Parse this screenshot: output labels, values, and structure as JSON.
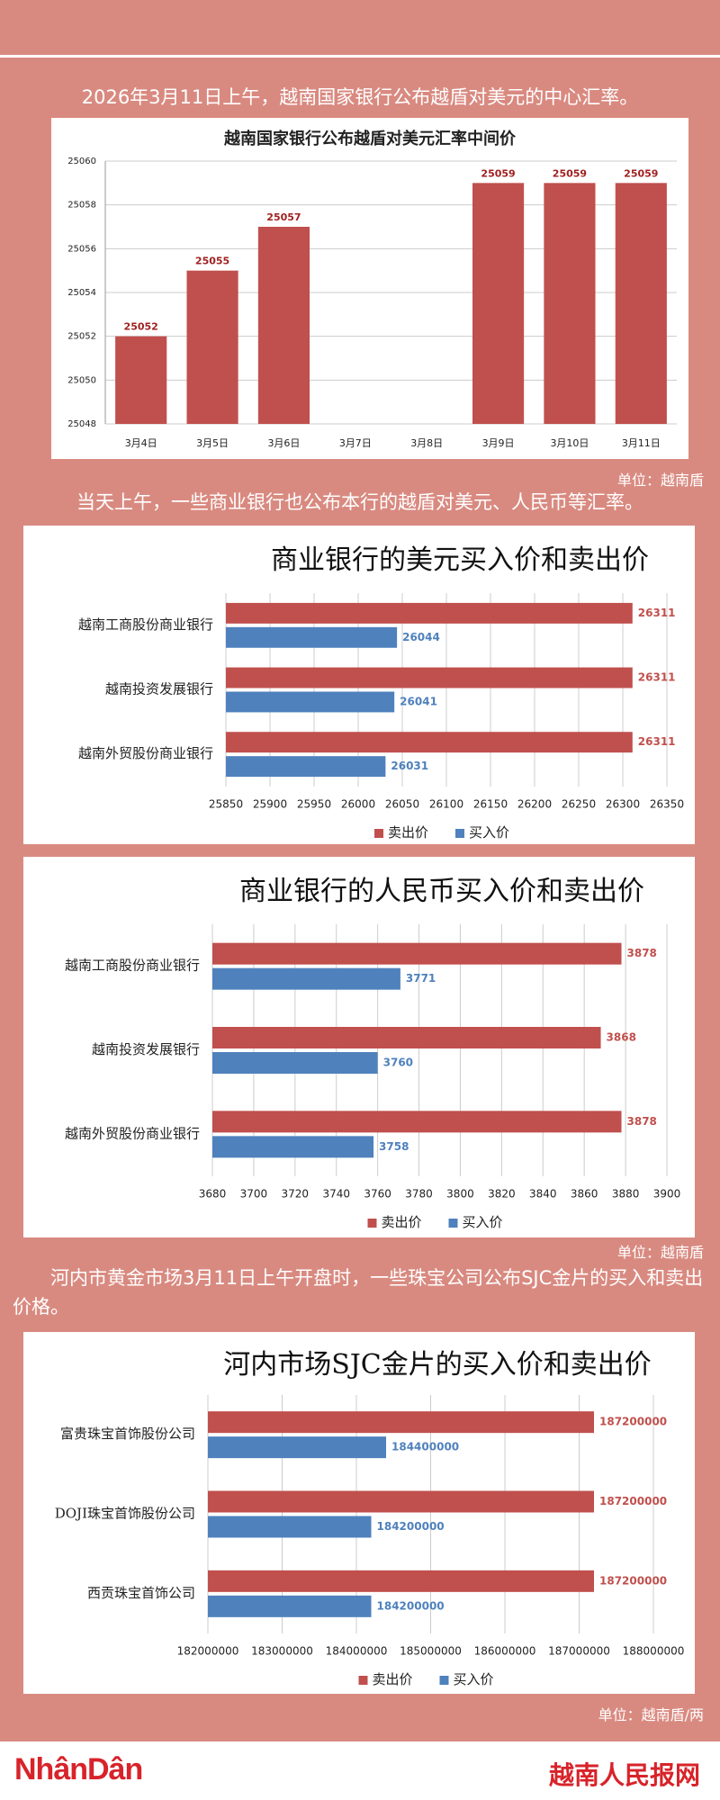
{
  "paragraphs": [
    "2026年3月11日上午，越南国家银行公布越盾对美元的中心汇率。",
    "当天上午，一些商业银行也公布本行的越盾对美元、人民币等汇率。",
    "河内市黄金市场3月11日上午开盘时，一些珠宝公司公布SJC金片的买入和卖出价格。"
  ],
  "units": [
    "单位：越南盾",
    "单位：越南盾",
    "单位：越南盾/两"
  ],
  "footer": {
    "logo": "NhânDân",
    "site": "越南人民报网"
  },
  "chart_data": [
    {
      "type": "bar",
      "title": "越南国家银行公布越盾对美元汇率中间价",
      "categories": [
        "3月4日",
        "3月5日",
        "3月6日",
        "3月7日",
        "3月8日",
        "3月9日",
        "3月10日",
        "3月11日"
      ],
      "values": [
        25052,
        25055,
        25057,
        null,
        null,
        25059,
        25059,
        25059
      ],
      "color": "#c0504d",
      "ylim": [
        25048,
        25060
      ],
      "yticks": [
        25048,
        25050,
        25052,
        25054,
        25056,
        25058,
        25060
      ],
      "grid": true
    },
    {
      "type": "bar",
      "horizontal": true,
      "title": "商业银行的美元买入价和卖出价",
      "categories": [
        "越南工商股份商业银行",
        "越南投资发展银行",
        "越南外贸股份商业银行"
      ],
      "series": [
        {
          "name": "卖出价",
          "color": "#c0504d",
          "values": [
            26311,
            26311,
            26311
          ]
        },
        {
          "name": "买入价",
          "color": "#4f81bd",
          "values": [
            26044,
            26041,
            26031
          ]
        }
      ],
      "xlim": [
        25850,
        26350
      ],
      "xticks": [
        25850,
        25900,
        25950,
        26000,
        26050,
        26100,
        26150,
        26200,
        26250,
        26300,
        26350
      ],
      "grid": true,
      "legend": "bottom"
    },
    {
      "type": "bar",
      "horizontal": true,
      "title": "商业银行的人民币买入价和卖出价",
      "categories": [
        "越南工商股份商业银行",
        "越南投资发展银行",
        "越南外贸股份商业银行"
      ],
      "series": [
        {
          "name": "卖出价",
          "color": "#c0504d",
          "values": [
            3878,
            3868,
            3878
          ]
        },
        {
          "name": "买入价",
          "color": "#4f81bd",
          "values": [
            3771,
            3760,
            3758
          ]
        }
      ],
      "xlim": [
        3680,
        3900
      ],
      "xticks": [
        3680,
        3700,
        3720,
        3740,
        3760,
        3780,
        3800,
        3820,
        3840,
        3860,
        3880,
        3900
      ],
      "grid": true,
      "legend": "bottom"
    },
    {
      "type": "bar",
      "horizontal": true,
      "title": "河内市场SJC金片的买入价和卖出价",
      "categories": [
        "富贵珠宝首饰股份公司",
        "DOJI珠宝首饰股份公司",
        "西贡珠宝首饰公司"
      ],
      "series": [
        {
          "name": "卖出价",
          "color": "#c0504d",
          "values": [
            187200000,
            187200000,
            187200000
          ]
        },
        {
          "name": "买入价",
          "color": "#4f81bd",
          "values": [
            184400000,
            184200000,
            184200000
          ]
        }
      ],
      "xlim": [
        182000000,
        188000000
      ],
      "xticks": [
        182000000,
        183000000,
        184000000,
        185000000,
        186000000,
        187000000,
        188000000
      ],
      "grid": true,
      "legend": "bottom"
    }
  ]
}
